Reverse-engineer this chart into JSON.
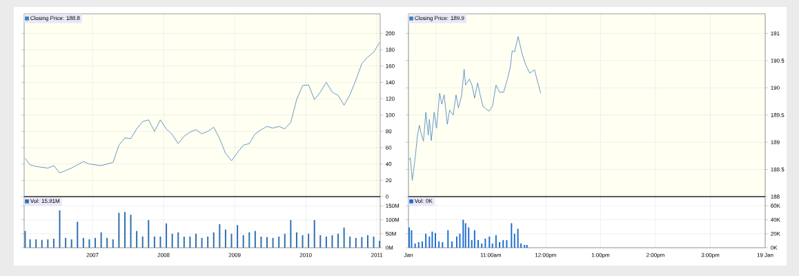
{
  "chart_data": [
    {
      "type": "line",
      "xlim": [
        "2006-01-15",
        "2011-01-18"
      ],
      "xticks": [
        "2007",
        "2008",
        "2009",
        "2010",
        "2011"
      ],
      "ylim": [
        0,
        224
      ],
      "yticks": [
        0,
        20,
        40,
        60,
        80,
        100,
        120,
        140,
        160,
        180,
        200
      ],
      "tick_labels": "y",
      "grid": true,
      "legend": "top left",
      "x": [
        "2006-01-20",
        "2006-02-15",
        "2006-03-15",
        "2006-04-15",
        "2006-05-15",
        "2006-06-15",
        "2006-07-15",
        "2006-08-15",
        "2006-09-15",
        "2006-10-15",
        "2006-11-15",
        "2006-12-15",
        "2007-01-15",
        "2007-02-15",
        "2007-03-15",
        "2007-04-15",
        "2007-05-15",
        "2007-06-15",
        "2007-07-15",
        "2007-08-15",
        "2007-09-15",
        "2007-10-15",
        "2007-11-15",
        "2007-12-15",
        "2008-01-15",
        "2008-02-15",
        "2008-03-15",
        "2008-04-15",
        "2008-05-15",
        "2008-06-15",
        "2008-07-15",
        "2008-08-15",
        "2008-09-15",
        "2008-10-15",
        "2008-11-15",
        "2008-12-15",
        "2009-01-15",
        "2009-02-15",
        "2009-03-15",
        "2009-04-15",
        "2009-05-15",
        "2009-06-15",
        "2009-07-15",
        "2009-08-15",
        "2009-09-15",
        "2009-10-15",
        "2009-11-15",
        "2009-12-15",
        "2010-01-15",
        "2010-02-15",
        "2010-03-15",
        "2010-04-15",
        "2010-05-15",
        "2010-06-15",
        "2010-07-15",
        "2010-08-15",
        "2010-09-15",
        "2010-10-15",
        "2010-11-15",
        "2010-12-15",
        "2011-01-15"
      ],
      "series": [
        {
          "name": "Closing Price: 188.8",
          "color": "#3f7fbf",
          "values": [
            47,
            39,
            37,
            36,
            35,
            38,
            29,
            32,
            35,
            39,
            43,
            40,
            39,
            38,
            40,
            42,
            63,
            72,
            71,
            83,
            92,
            94,
            80,
            94,
            83,
            76,
            65,
            74,
            79,
            82,
            77,
            80,
            85,
            71,
            53,
            44,
            54,
            63,
            65,
            77,
            82,
            86,
            84,
            86,
            83,
            91,
            119,
            136,
            137,
            119,
            128,
            140,
            128,
            124,
            112,
            125,
            143,
            163,
            171,
            177,
            189
          ]
        }
      ]
    },
    {
      "type": "bar",
      "xlim": [
        "2006-01-15",
        "2011-01-18"
      ],
      "xticks": [
        "2007",
        "2008",
        "2009",
        "2010",
        "2011"
      ],
      "ylim": [
        0,
        183
      ],
      "yticks": [
        {
          "value": 0,
          "label": "0M"
        },
        {
          "value": 50,
          "label": "50M"
        },
        {
          "value": 100,
          "label": "100M"
        },
        {
          "value": 150,
          "label": "150M"
        }
      ],
      "grid": true,
      "legend": "top left",
      "x": [
        "2006-01-20",
        "2006-02-15",
        "2006-03-15",
        "2006-04-15",
        "2006-05-15",
        "2006-06-15",
        "2006-07-15",
        "2006-08-15",
        "2006-09-15",
        "2006-10-15",
        "2006-11-15",
        "2006-12-15",
        "2007-01-15",
        "2007-02-15",
        "2007-03-15",
        "2007-04-15",
        "2007-05-15",
        "2007-06-15",
        "2007-07-15",
        "2007-08-15",
        "2007-09-15",
        "2007-10-15",
        "2007-11-15",
        "2007-12-15",
        "2008-01-15",
        "2008-02-15",
        "2008-03-15",
        "2008-04-15",
        "2008-05-15",
        "2008-06-15",
        "2008-07-15",
        "2008-08-15",
        "2008-09-15",
        "2008-10-15",
        "2008-11-15",
        "2008-12-15",
        "2009-01-15",
        "2009-02-15",
        "2009-03-15",
        "2009-04-15",
        "2009-05-15",
        "2009-06-15",
        "2009-07-15",
        "2009-08-15",
        "2009-09-15",
        "2009-10-15",
        "2009-11-15",
        "2009-12-15",
        "2010-01-15",
        "2010-02-15",
        "2010-03-15",
        "2010-04-15",
        "2010-05-15",
        "2010-06-15",
        "2010-07-15",
        "2010-08-15",
        "2010-09-15",
        "2010-10-15",
        "2010-11-15",
        "2010-12-15",
        "2011-01-15"
      ],
      "series": [
        {
          "name": "Vol: 15.91M",
          "color": "#2f6fb0",
          "values": [
            60,
            30,
            30,
            28,
            30,
            32,
            134,
            35,
            30,
            93,
            35,
            30,
            35,
            55,
            35,
            30,
            125,
            128,
            118,
            60,
            40,
            99,
            40,
            40,
            87,
            50,
            55,
            40,
            40,
            50,
            35,
            40,
            55,
            84,
            65,
            50,
            81,
            45,
            55,
            60,
            40,
            38,
            35,
            40,
            50,
            99,
            55,
            45,
            50,
            99,
            45,
            40,
            45,
            50,
            72,
            40,
            35,
            38,
            45,
            40,
            25
          ]
        }
      ]
    },
    {
      "type": "line",
      "xlim": [
        9.5,
        16
      ],
      "xticks": [
        9.5,
        10,
        11,
        12,
        13,
        14,
        15,
        16
      ],
      "ylim": [
        188,
        191.36
      ],
      "yticks": [
        188,
        188.5,
        189,
        189.5,
        190,
        190.5,
        191
      ],
      "tick_labels": "y",
      "grid": true,
      "legend": "top left",
      "x": [
        9.5,
        9.535,
        9.569,
        9.613,
        9.665,
        9.699,
        9.734,
        9.773,
        9.816,
        9.86,
        9.881,
        9.916,
        9.968,
        10.011,
        10.068,
        10.107,
        10.15,
        10.207,
        10.25,
        10.315,
        10.367,
        10.41,
        10.467,
        10.514,
        10.54,
        10.61,
        10.662,
        10.705,
        10.761,
        10.8,
        10.857,
        10.965,
        11.03,
        11.095,
        11.16,
        11.234,
        11.303,
        11.355,
        11.39,
        11.433,
        11.498,
        11.572,
        11.637,
        11.711,
        11.797,
        11.854,
        11.91
      ],
      "series": [
        {
          "name": "Closing Price: 189.9",
          "color": "#3f7fbf",
          "values": [
            188.68,
            188.71,
            188.3,
            188.63,
            189.13,
            189.31,
            189.15,
            189.02,
            189.55,
            189.13,
            189.42,
            189.03,
            189.55,
            189.26,
            189.9,
            189.7,
            189.87,
            189.33,
            189.59,
            189.5,
            189.87,
            189.63,
            189.85,
            190.34,
            190.05,
            190.16,
            190.03,
            189.81,
            190.09,
            189.9,
            189.66,
            189.57,
            189.66,
            190.05,
            189.92,
            189.92,
            190.16,
            190.38,
            190.68,
            190.66,
            190.94,
            190.62,
            190.42,
            190.27,
            190.33,
            190.11,
            189.9
          ]
        }
      ]
    },
    {
      "type": "bar",
      "xlim": [
        9.5,
        16
      ],
      "xticks": [
        {
          "value": 9.5,
          "label": "Jan"
        },
        {
          "value": 10,
          "label": null
        },
        {
          "value": 11,
          "label": "11:00am"
        },
        {
          "value": 12,
          "label": "12:00pm"
        },
        {
          "value": 13,
          "label": "1:00pm"
        },
        {
          "value": 14,
          "label": "2:00pm"
        },
        {
          "value": 15,
          "label": "3:00pm"
        },
        {
          "value": 16,
          "label": "19 Jan"
        }
      ],
      "ylim": [
        0,
        73
      ],
      "yticks": [
        {
          "value": 0,
          "label": "0K"
        },
        {
          "value": 20,
          "label": "20K"
        },
        {
          "value": 40,
          "label": "40K"
        },
        {
          "value": 60,
          "label": "60K"
        }
      ],
      "grid": true,
      "legend": "top left",
      "x": [
        9.513,
        9.556,
        9.621,
        9.686,
        9.751,
        9.816,
        9.881,
        9.933,
        9.99,
        10.055,
        10.12,
        10.22,
        10.293,
        10.38,
        10.436,
        10.497,
        10.54,
        10.597,
        10.653,
        10.705,
        10.77,
        10.835,
        10.9,
        10.974,
        11.03,
        11.095,
        11.16,
        11.225,
        11.29,
        11.377,
        11.433,
        11.494,
        11.55,
        11.615,
        11.659
      ],
      "series": [
        {
          "name": "Vol: 0K",
          "color": "#1f6fcf",
          "values": [
            29,
            25,
            6,
            8,
            9,
            20,
            16,
            23,
            21,
            9,
            8,
            25,
            9,
            16,
            20,
            40,
            35,
            29,
            11,
            25,
            11,
            6,
            13,
            16,
            6,
            18,
            8,
            11,
            11,
            35,
            20,
            27,
            6,
            4,
            4
          ]
        }
      ]
    }
  ]
}
